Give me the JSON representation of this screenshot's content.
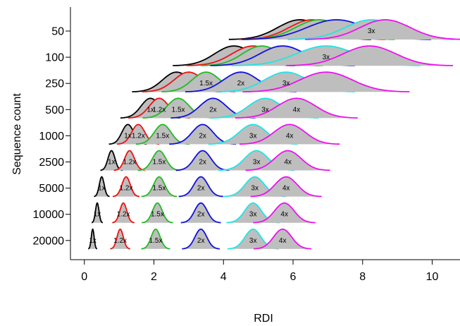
{
  "chart_data": {
    "type": "area",
    "xlabel": "RDI",
    "ylabel": "Sequence count",
    "xlim": [
      -0.4,
      10.8
    ],
    "x_ticks": [
      0,
      2,
      4,
      6,
      8,
      10
    ],
    "grid": false,
    "legend": "none",
    "categories": [
      "50",
      "100",
      "250",
      "500",
      "1000",
      "2500",
      "5000",
      "10000",
      "20000"
    ],
    "levels": [
      "1x",
      "1.2x",
      "1.5x",
      "2x",
      "3x",
      "4x"
    ],
    "level_colors": {
      "1x": "#000000",
      "1.2x": "#ee1111",
      "1.5x": "#22bb22",
      "2x": "#1111dd",
      "3x": "#22e5e5",
      "4x": "#ee11ee"
    },
    "fill_color": "#bebebe",
    "rows": [
      {
        "category": "50",
        "curves": [
          {
            "level": "1x",
            "center": 6.2,
            "sd": 0.64
          },
          {
            "level": "1.2x",
            "center": 6.55,
            "sd": 0.66
          },
          {
            "level": "1.5x",
            "center": 6.75,
            "sd": 0.68
          },
          {
            "level": "2x",
            "center": 7.25,
            "sd": 0.85
          },
          {
            "level": "3x",
            "center": 8.25,
            "sd": 0.75,
            "label": "3x"
          },
          {
            "level": "4x",
            "center": 8.65,
            "sd": 0.72
          }
        ]
      },
      {
        "category": "100",
        "curves": [
          {
            "level": "1x",
            "center": 4.3,
            "sd": 0.55
          },
          {
            "level": "1.2x",
            "center": 4.85,
            "sd": 0.6
          },
          {
            "level": "1.5x",
            "center": 5.1,
            "sd": 0.55
          },
          {
            "level": "2x",
            "center": 5.7,
            "sd": 0.65
          },
          {
            "level": "3x",
            "center": 6.95,
            "sd": 0.85,
            "label": "3x"
          },
          {
            "level": "4x",
            "center": 8.2,
            "sd": 0.75
          }
        ]
      },
      {
        "category": "250",
        "curves": [
          {
            "level": "1x",
            "center": 2.65,
            "sd": 0.4
          },
          {
            "level": "1.2x",
            "center": 3.0,
            "sd": 0.42
          },
          {
            "level": "1.5x",
            "center": 3.5,
            "sd": 0.4,
            "label": "1.5x"
          },
          {
            "level": "2x",
            "center": 4.5,
            "sd": 0.5,
            "label": "2x"
          },
          {
            "level": "3x",
            "center": 5.8,
            "sd": 0.62,
            "label": "3x"
          },
          {
            "level": "4x",
            "center": 6.95,
            "sd": 0.75
          }
        ]
      },
      {
        "category": "500",
        "curves": [
          {
            "level": "1x",
            "center": 1.9,
            "sd": 0.27,
            "label": "1x"
          },
          {
            "level": "1.2x",
            "center": 2.15,
            "sd": 0.28,
            "label": "1.2x"
          },
          {
            "level": "1.5x",
            "center": 2.7,
            "sd": 0.32,
            "label": "1.5x"
          },
          {
            "level": "2x",
            "center": 3.7,
            "sd": 0.38,
            "label": "2x"
          },
          {
            "level": "3x",
            "center": 5.2,
            "sd": 0.48,
            "label": "3x"
          },
          {
            "level": "4x",
            "center": 6.1,
            "sd": 0.55,
            "label": "4x"
          }
        ]
      },
      {
        "category": "1000",
        "curves": [
          {
            "level": "1x",
            "center": 1.25,
            "sd": 0.17,
            "label": "1x"
          },
          {
            "level": "1.2x",
            "center": 1.55,
            "sd": 0.19,
            "label": "1.2x"
          },
          {
            "level": "1.5x",
            "center": 2.25,
            "sd": 0.24,
            "label": "1.5x"
          },
          {
            "level": "2x",
            "center": 3.4,
            "sd": 0.3,
            "label": "2x"
          },
          {
            "level": "3x",
            "center": 4.85,
            "sd": 0.4,
            "label": "3x"
          },
          {
            "level": "4x",
            "center": 5.9,
            "sd": 0.45,
            "label": "4x"
          }
        ]
      },
      {
        "category": "2500",
        "curves": [
          {
            "level": "1x",
            "center": 0.78,
            "sd": 0.1,
            "label": "1x"
          },
          {
            "level": "1.2x",
            "center": 1.3,
            "sd": 0.14,
            "label": "1.2x"
          },
          {
            "level": "1.5x",
            "center": 2.15,
            "sd": 0.19,
            "label": "1.5x"
          },
          {
            "level": "2x",
            "center": 3.4,
            "sd": 0.24,
            "label": "2x"
          },
          {
            "level": "3x",
            "center": 4.95,
            "sd": 0.34,
            "label": "3x"
          },
          {
            "level": "4x",
            "center": 5.85,
            "sd": 0.38,
            "label": "4x"
          }
        ]
      },
      {
        "category": "5000",
        "curves": [
          {
            "level": "1x",
            "center": 0.5,
            "sd": 0.07,
            "label": "1x"
          },
          {
            "level": "1.2x",
            "center": 1.2,
            "sd": 0.12,
            "label": "1.2x"
          },
          {
            "level": "1.5x",
            "center": 2.15,
            "sd": 0.16,
            "label": "1.5x"
          },
          {
            "level": "2x",
            "center": 3.35,
            "sd": 0.2,
            "label": "2x"
          },
          {
            "level": "3x",
            "center": 4.9,
            "sd": 0.28,
            "label": "3x"
          },
          {
            "level": "4x",
            "center": 5.8,
            "sd": 0.32,
            "label": "4x"
          }
        ]
      },
      {
        "category": "10000",
        "curves": [
          {
            "level": "1x",
            "center": 0.37,
            "sd": 0.05,
            "label": "1x"
          },
          {
            "level": "1.2x",
            "center": 1.12,
            "sd": 0.1,
            "label": "1.2x"
          },
          {
            "level": "1.5x",
            "center": 2.1,
            "sd": 0.14,
            "label": "1.5x"
          },
          {
            "level": "2x",
            "center": 3.35,
            "sd": 0.18,
            "label": "2x"
          },
          {
            "level": "3x",
            "center": 4.85,
            "sd": 0.24,
            "label": "3x"
          },
          {
            "level": "4x",
            "center": 5.75,
            "sd": 0.28,
            "label": "4x"
          }
        ]
      },
      {
        "category": "20000",
        "curves": [
          {
            "level": "1x",
            "center": 0.24,
            "sd": 0.04,
            "label": "1x"
          },
          {
            "level": "1.2x",
            "center": 1.03,
            "sd": 0.09,
            "label": "1.2x"
          },
          {
            "level": "1.5x",
            "center": 2.05,
            "sd": 0.13,
            "label": "1.5x"
          },
          {
            "level": "2x",
            "center": 3.35,
            "sd": 0.17,
            "label": "2x"
          },
          {
            "level": "3x",
            "center": 4.85,
            "sd": 0.23,
            "label": "3x"
          },
          {
            "level": "4x",
            "center": 5.7,
            "sd": 0.26,
            "label": "4x"
          }
        ]
      }
    ]
  }
}
